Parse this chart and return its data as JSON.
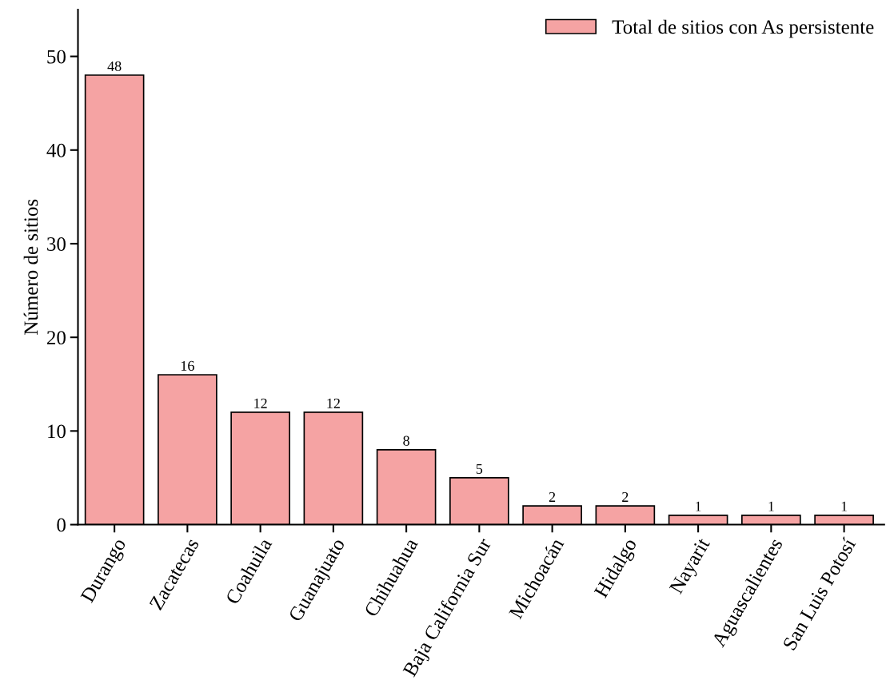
{
  "chart_data": {
    "type": "bar",
    "ylabel": "Número de sitios",
    "categories": [
      "Durango",
      "Zacatecas",
      "Coahuila",
      "Guanajuato",
      "Chihuahua",
      "Baja California Sur",
      "Michoacán",
      "Hidalgo",
      "Nayarit",
      "Aguascalientes",
      "San Luis Potosí"
    ],
    "series": [
      {
        "name": "Total de sitios con As persistente",
        "color": "#f5a3a3",
        "values": [
          48,
          16,
          12,
          12,
          8,
          5,
          2,
          2,
          1,
          1,
          1
        ]
      }
    ],
    "ylim": [
      0,
      55
    ],
    "yticks": [
      0,
      10,
      20,
      30,
      40,
      50
    ],
    "data_labels": true,
    "grid": false,
    "legend": "top right"
  }
}
